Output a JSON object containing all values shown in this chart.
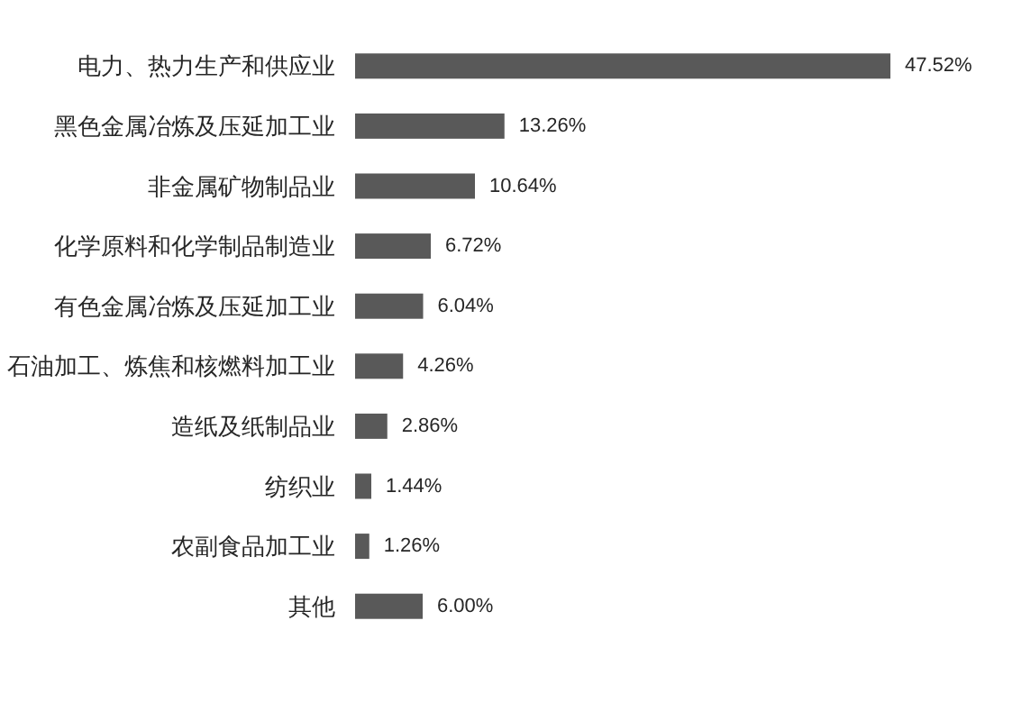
{
  "chart_data": {
    "type": "bar",
    "orientation": "horizontal",
    "categories": [
      "电力、热力生产和供应业",
      "黑色金属冶炼及压延加工业",
      "非金属矿物制品业",
      "化学原料和化学制品制造业",
      "有色金属冶炼及压延加工业",
      "石油加工、炼焦和核燃料加工业",
      "造纸及纸制品业",
      "纺织业",
      "农副食品加工业",
      "其他"
    ],
    "values": [
      47.52,
      13.26,
      10.64,
      6.72,
      6.04,
      4.26,
      2.86,
      1.44,
      1.26,
      6.0
    ],
    "value_labels": [
      "47.52%",
      "13.26%",
      "10.64%",
      "6.72%",
      "6.04%",
      "4.26%",
      "2.86%",
      "1.44%",
      "1.26%",
      "6.00%"
    ],
    "color": "#595959",
    "tick_labels": "y"
  }
}
